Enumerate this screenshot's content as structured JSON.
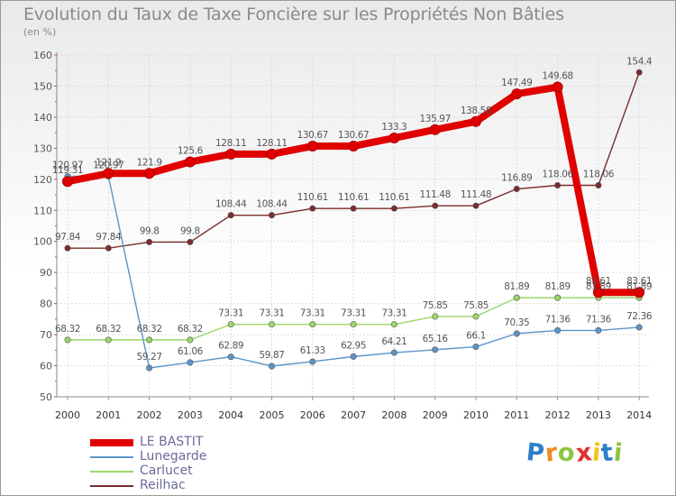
{
  "chart_data": {
    "type": "line",
    "title": "Evolution du Taux de Taxe Foncière sur les Propriétés Non Bâties",
    "subtitle": "(en %)",
    "x": [
      "2000",
      "2001",
      "2002",
      "2003",
      "2004",
      "2005",
      "2006",
      "2007",
      "2008",
      "2009",
      "2010",
      "2011",
      "2012",
      "2013",
      "2014"
    ],
    "ylim": [
      50,
      160
    ],
    "yticks": [
      "50",
      "60",
      "70",
      "80",
      "90",
      "100",
      "110",
      "120",
      "130",
      "140",
      "150",
      "160"
    ],
    "grid": true,
    "legend_position": "bottom-left",
    "series": [
      {
        "name": "LE BASTIT",
        "color": "#e00000",
        "values": [
          119.31,
          121.9,
          121.9,
          125.6,
          128.11,
          128.11,
          130.67,
          130.67,
          133.3,
          135.97,
          138.58,
          147.49,
          149.68,
          83.61,
          83.61
        ],
        "labels": [
          "119.31",
          "121.9",
          "121.9",
          "125.6",
          "128.11",
          "128.11",
          "130.67",
          "130.67",
          "133.3",
          "135.97",
          "138.58",
          "147.49",
          "149.68",
          "83.61",
          "83.61"
        ]
      },
      {
        "name": "Lunegarde",
        "color": "#5b95c8",
        "values": [
          120.97,
          120.97,
          59.27,
          61.06,
          62.89,
          59.87,
          61.33,
          62.95,
          64.21,
          65.16,
          66.1,
          70.35,
          71.36,
          71.36,
          72.36
        ],
        "labels": [
          "120.97",
          "120.97",
          "59.27",
          "61.06",
          "62.89",
          "59.87",
          "61.33",
          "62.95",
          "64.21",
          "65.16",
          "66.1",
          "70.35",
          "71.36",
          "71.36",
          "72.36"
        ]
      },
      {
        "name": "Carlucet",
        "color": "#9ad86a",
        "values": [
          68.32,
          68.32,
          68.32,
          68.32,
          73.31,
          73.31,
          73.31,
          73.31,
          73.31,
          75.85,
          75.85,
          81.89,
          81.89,
          81.89,
          81.89
        ],
        "labels": [
          "68.32",
          "68.32",
          "68.32",
          "68.32",
          "73.31",
          "73.31",
          "73.31",
          "73.31",
          "73.31",
          "75.85",
          "75.85",
          "81.89",
          "81.89",
          "81.89",
          "81.89"
        ]
      },
      {
        "name": "Reilhac",
        "color": "#7a2c2c",
        "values": [
          97.84,
          97.84,
          99.8,
          99.8,
          108.44,
          108.44,
          110.61,
          110.61,
          110.61,
          111.48,
          111.48,
          116.89,
          118.06,
          118.06,
          154.4
        ],
        "labels": [
          "97.84",
          "97.84",
          "99.8",
          "99.8",
          "108.44",
          "108.44",
          "110.61",
          "110.61",
          "110.61",
          "111.48",
          "111.48",
          "116.89",
          "118.06",
          "118.06",
          "154.4"
        ]
      }
    ]
  },
  "logo": {
    "letters": [
      "P",
      "r",
      "o",
      "x",
      "i",
      "t",
      "i"
    ],
    "colors": [
      "#2c7fc9",
      "#f08a1c",
      "#8cc63f",
      "#e03030",
      "#f0c419",
      "#2c7fc9",
      "#8cc63f"
    ]
  }
}
